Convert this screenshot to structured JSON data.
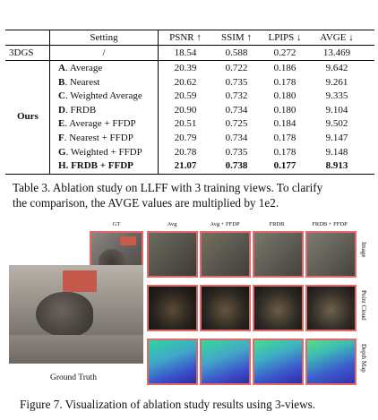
{
  "table": {
    "headers": {
      "setting": "Setting",
      "psnr": "PSNR ↑",
      "ssim": "SSIM ↑",
      "lpips": "LPIPS ↓",
      "avge": "AVGE ↓"
    },
    "baseline": {
      "method": "3DGS",
      "setting": "/",
      "psnr": "18.54",
      "ssim": "0.588",
      "lpips": "0.272",
      "avge": "13.469"
    },
    "group_label": "Ours",
    "rows": [
      {
        "key": "A",
        "name": ". Average",
        "psnr": "20.39",
        "ssim": "0.722",
        "lpips": "0.186",
        "avge": "9.642"
      },
      {
        "key": "B",
        "name": ". Nearest",
        "psnr": "20.62",
        "ssim": "0.735",
        "lpips": "0.178",
        "avge": "9.261"
      },
      {
        "key": "C",
        "name": ". Weighted Average",
        "psnr": "20.59",
        "ssim": "0.732",
        "lpips": "0.180",
        "avge": "9.335"
      },
      {
        "key": "D",
        "name": ". FRDB",
        "psnr": "20.90",
        "ssim": "0.734",
        "lpips": "0.180",
        "avge": "9.104"
      },
      {
        "key": "E",
        "name": ". Average + FFDP",
        "psnr": "20.51",
        "ssim": "0.725",
        "lpips": "0.184",
        "avge": "9.502"
      },
      {
        "key": "F",
        "name": ". Nearest + FFDP",
        "psnr": "20.79",
        "ssim": "0.734",
        "lpips": "0.178",
        "avge": "9.147"
      },
      {
        "key": "G",
        "name": ". Weighted + FFDP",
        "psnr": "20.78",
        "ssim": "0.735",
        "lpips": "0.178",
        "avge": "9.148"
      },
      {
        "key": "H",
        "name": ". FRDB + FFDP",
        "psnr": "21.07",
        "ssim": "0.738",
        "lpips": "0.177",
        "avge": "8.913",
        "bold": true
      }
    ]
  },
  "table_caption": "Table 3. Ablation study on LLFF with 3 training views. To clarify the comparison, the AVGE values are multiplied by 1e2.",
  "table_caption_line1": "Table 3. Ablation study on LLFF with 3 training views. To clarify",
  "table_caption_line2": "the comparison, the AVGE values are multiplied by 1e2.",
  "figure": {
    "col_labels": [
      "GT",
      "Avg",
      "Avg + FFDP",
      "FRDB",
      "FRDB + FFDP"
    ],
    "row_labels": [
      "Image",
      "Point Cloud",
      "Depth Map"
    ],
    "ground_truth_label": "Ground Truth",
    "border_color": "#e06a6a"
  },
  "figure_caption": "Figure 7. Visualization of ablation study results using 3-views."
}
